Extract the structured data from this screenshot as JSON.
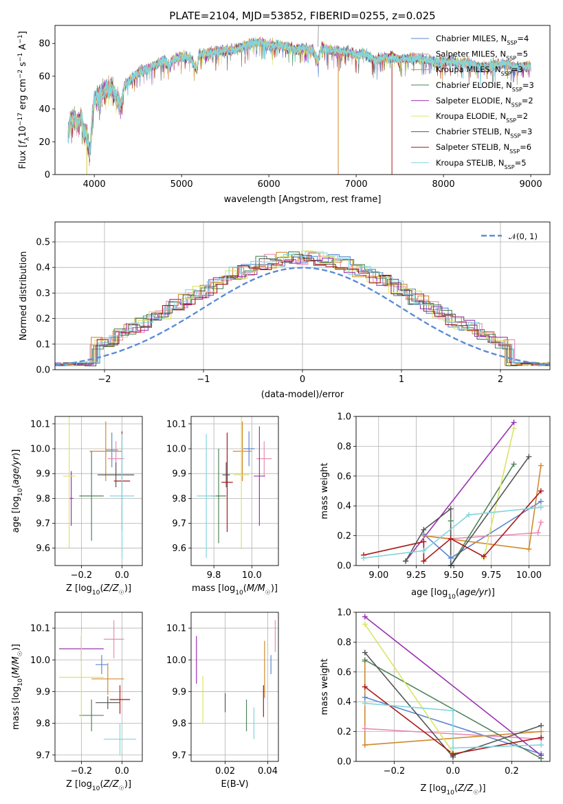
{
  "colors": {
    "grid": "#b0b0b0",
    "normal_curve": "#5b8bd6"
  },
  "series": [
    {
      "color": "#5b86cf",
      "name_base": "Chabrier MILES",
      "nssp": "4"
    },
    {
      "color": "#e88bb4",
      "name_base": "Salpeter MILES",
      "nssp": "5"
    },
    {
      "color": "#d2892c",
      "name_base": "Kroupa MILES",
      "nssp": "3"
    },
    {
      "color": "#4f845a",
      "name_base": "Chabrier ELODIE",
      "nssp": "3"
    },
    {
      "color": "#9a31b0",
      "name_base": "Salpeter ELODIE",
      "nssp": "2"
    },
    {
      "color": "#dbe364",
      "name_base": "Kroupa ELODIE",
      "nssp": "2"
    },
    {
      "color": "#555555",
      "name_base": "Chabrier STELIB",
      "nssp": "3"
    },
    {
      "color": "#a81818",
      "name_base": "Salpeter STELIB",
      "nssp": "6"
    },
    {
      "color": "#7fd6dc",
      "name_base": "Kroupa STELIB",
      "nssp": "5"
    }
  ],
  "chart_data": [
    {
      "id": "spectrum",
      "type": "line",
      "title": "PLATE=2104, MJD=53852, FIBERID=0255, z=0.025",
      "xlabel": "wavelength [Angstrom, rest frame]",
      "ylabel": "Flux [f_λ10^-17 erg cm^-2 s^-1 A^-1]",
      "xlim": [
        3550,
        9220
      ],
      "ylim": [
        0,
        91
      ],
      "xticks": [
        4000,
        5000,
        6000,
        7000,
        8000,
        9000
      ],
      "yticks": [
        0,
        20,
        40,
        60,
        80
      ],
      "grid": false,
      "legend": "upper right",
      "envelope": {
        "x": [
          3700,
          3720,
          3780,
          3820,
          3850,
          3880,
          3900,
          3920,
          3950,
          3980,
          4000,
          4050,
          4100,
          4150,
          4200,
          4250,
          4300,
          4350,
          4400,
          4500,
          4600,
          4700,
          4800,
          4860,
          4900,
          5000,
          5100,
          5175,
          5200,
          5300,
          5400,
          5500,
          5600,
          5700,
          5800,
          5900,
          6000,
          6100,
          6200,
          6300,
          6400,
          6500,
          6563,
          6600,
          6700,
          6800,
          6900,
          7000,
          7100,
          7200,
          7300,
          7400,
          7500,
          7600,
          7700,
          7800,
          7900,
          8000,
          8100,
          8200,
          8300,
          8400,
          8500,
          8600,
          8700,
          8800,
          8900,
          9000
        ],
        "y": [
          24,
          32,
          35,
          30,
          36,
          24,
          28,
          20,
          14,
          38,
          46,
          48,
          50,
          52,
          53,
          47,
          42,
          55,
          57,
          62,
          64,
          67,
          70,
          66,
          70,
          72,
          71,
          64,
          73,
          74,
          75,
          76,
          76,
          78,
          80,
          81,
          79,
          79,
          78,
          76,
          77,
          76,
          69,
          78,
          76,
          75,
          75,
          73,
          74,
          70,
          71,
          72,
          70,
          71,
          71,
          70,
          69,
          69,
          69,
          68,
          68,
          66,
          66,
          67,
          68,
          66,
          66,
          66
        ]
      }
    },
    {
      "id": "residuals",
      "type": "histogram",
      "xlabel": "(data-model)/error",
      "ylabel": "Normed distribution",
      "xlim": [
        -2.5,
        2.5
      ],
      "ylim": [
        0,
        0.578
      ],
      "xticks": [
        -2,
        -1,
        0,
        1,
        2
      ],
      "yticks": [
        0.0,
        0.1,
        0.2,
        0.3,
        0.4,
        0.5
      ],
      "grid": true,
      "legend": "upper right",
      "legend_label": "𝒩(0, 1)",
      "bin_width": 0.11
    },
    {
      "id": "age-vs-Z",
      "type": "errorbar",
      "xlabel": "Z [log10(Z/Z☉)]",
      "ylabel": "age  [log10(age/yr)]",
      "xlim": [
        -0.33,
        0.1
      ],
      "ylim": [
        9.53,
        10.13
      ],
      "xticks": [
        -0.2,
        0.0
      ],
      "yticks": [
        9.6,
        9.7,
        9.8,
        9.9,
        10.0,
        10.1
      ],
      "grid": true,
      "points": [
        {
          "series": 0,
          "x": -0.05,
          "y": 9.995,
          "xerr": 0.03,
          "yerr": 0.07
        },
        {
          "series": 1,
          "x": -0.03,
          "y": 9.96,
          "xerr": 0.04,
          "yerr": 0.07
        },
        {
          "series": 2,
          "x": -0.08,
          "y": 9.99,
          "xerr": 0.08,
          "yerr": 0.12
        },
        {
          "series": 3,
          "x": -0.15,
          "y": 9.81,
          "xerr": 0.06,
          "yerr": 0.18
        },
        {
          "series": 4,
          "x": -0.25,
          "y": 9.8,
          "xerr": 0.01,
          "yerr": 0.11
        },
        {
          "series": 5,
          "x": -0.26,
          "y": 9.89,
          "xerr": 0.03,
          "yerr": 0.29
        },
        {
          "series": 6,
          "x": -0.03,
          "y": 9.895,
          "xerr": 0.09,
          "yerr": 0.05
        },
        {
          "series": 7,
          "x": 0.0,
          "y": 9.87,
          "xerr": 0.04,
          "yerr": 0.2
        },
        {
          "series": 8,
          "x": 0.0,
          "y": 9.81,
          "xerr": 0.06,
          "yerr": 0.25
        }
      ]
    },
    {
      "id": "age-vs-mass",
      "type": "errorbar",
      "xlabel": "mass [log10(M/M☉)]",
      "xlim": [
        9.68,
        10.14
      ],
      "ylim": [
        9.53,
        10.13
      ],
      "xticks": [
        9.8,
        10.0
      ],
      "yticks": [
        9.6,
        9.7,
        9.8,
        9.9,
        10.0,
        10.1
      ],
      "grid": true,
      "points": [
        {
          "series": 0,
          "x": 9.985,
          "y": 10.0,
          "xerr": 0.03,
          "yerr": 0.07
        },
        {
          "series": 1,
          "x": 10.065,
          "y": 9.96,
          "xerr": 0.04,
          "yerr": 0.07
        },
        {
          "series": 2,
          "x": 9.95,
          "y": 9.99,
          "xerr": 0.05,
          "yerr": 0.12
        },
        {
          "series": 3,
          "x": 9.825,
          "y": 9.81,
          "xerr": 0.04,
          "yerr": 0.19
        },
        {
          "series": 4,
          "x": 10.04,
          "y": 9.89,
          "xerr": 0.03,
          "yerr": 0.2
        },
        {
          "series": 5,
          "x": 9.945,
          "y": 9.895,
          "xerr": 0.04,
          "yerr": 0.3
        },
        {
          "series": 6,
          "x": 9.865,
          "y": 9.895,
          "xerr": 0.02,
          "yerr": 0.05
        },
        {
          "series": 7,
          "x": 9.87,
          "y": 9.865,
          "xerr": 0.03,
          "yerr": 0.2
        },
        {
          "series": 8,
          "x": 9.76,
          "y": 9.81,
          "xerr": 0.05,
          "yerr": 0.25
        }
      ]
    },
    {
      "id": "weight-vs-age",
      "type": "line",
      "xlabel": "age  [log10(age/yr)]",
      "ylabel": "mass weight",
      "xlim": [
        8.85,
        10.14
      ],
      "ylim": [
        0,
        1
      ],
      "xticks": [
        9.0,
        9.25,
        9.5,
        9.75,
        10.0
      ],
      "xtick_labels": [
        "9.00",
        "9.25",
        "9.50",
        "9.75",
        "10.00"
      ],
      "yticks": [
        0.0,
        0.2,
        0.4,
        0.6,
        0.8,
        1.0
      ],
      "grid": true,
      "lines": [
        {
          "series": 0,
          "x": [
            9.3,
            9.48,
            10.08
          ],
          "y": [
            0.21,
            0.05,
            0.43
          ]
        },
        {
          "series": 1,
          "x": [
            9.3,
            9.48,
            10.06,
            10.08
          ],
          "y": [
            0.2,
            0.18,
            0.22,
            0.29
          ]
        },
        {
          "series": 2,
          "x": [
            9.3,
            10.0,
            10.08
          ],
          "y": [
            0.2,
            0.11,
            0.67
          ]
        },
        {
          "series": 3,
          "x": [
            9.48,
            9.48,
            9.9
          ],
          "y": [
            0.3,
            0.0,
            0.68
          ]
        },
        {
          "series": 4,
          "x": [
            9.18,
            9.9
          ],
          "y": [
            0.03,
            0.96
          ]
        },
        {
          "series": 5,
          "x": [
            9.7,
            9.9
          ],
          "y": [
            0.05,
            0.92
          ]
        },
        {
          "series": 6,
          "x": [
            9.18,
            9.3,
            9.48,
            9.48,
            10.0
          ],
          "y": [
            0.03,
            0.24,
            0.38,
            0.0,
            0.73
          ]
        },
        {
          "series": 7,
          "x": [
            8.9,
            9.3,
            9.3,
            9.48,
            9.7,
            10.08
          ],
          "y": [
            0.07,
            0.16,
            0.03,
            0.18,
            0.06,
            0.5
          ]
        },
        {
          "series": 8,
          "x": [
            8.9,
            9.3,
            9.6,
            10.08
          ],
          "y": [
            0.05,
            0.1,
            0.34,
            0.39
          ]
        }
      ]
    },
    {
      "id": "mass-vs-Z",
      "type": "errorbar",
      "xlabel": "Z [log10(Z/Z☉)]",
      "ylabel": "mass [log10(M/M☉)]",
      "xlim": [
        -0.33,
        0.1
      ],
      "ylim": [
        9.68,
        10.15
      ],
      "xticks": [
        -0.2,
        0.0
      ],
      "yticks": [
        9.7,
        9.8,
        9.9,
        10.0,
        10.1
      ],
      "grid": true,
      "points": [
        {
          "series": 0,
          "x": -0.1,
          "y": 9.985,
          "xerr": 0.03,
          "yerr": 0.03
        },
        {
          "series": 1,
          "x": -0.04,
          "y": 10.065,
          "xerr": 0.05,
          "yerr": 0.06
        },
        {
          "series": 2,
          "x": -0.07,
          "y": 9.94,
          "xerr": 0.08,
          "yerr": 0.05
        },
        {
          "series": 3,
          "x": -0.15,
          "y": 9.825,
          "xerr": 0.06,
          "yerr": 0.05
        },
        {
          "series": 4,
          "x": -0.2,
          "y": 10.035,
          "xerr": 0.11,
          "yerr": 0.04
        },
        {
          "series": 5,
          "x": -0.2,
          "y": 9.945,
          "xerr": 0.11,
          "yerr": 0.14
        },
        {
          "series": 6,
          "x": -0.07,
          "y": 9.865,
          "xerr": 0.06,
          "yerr": 0.02
        },
        {
          "series": 7,
          "x": -0.01,
          "y": 9.875,
          "xerr": 0.05,
          "yerr": 0.045
        },
        {
          "series": 8,
          "x": -0.01,
          "y": 9.75,
          "xerr": 0.08,
          "yerr": 0.05
        }
      ]
    },
    {
      "id": "mass-vs-ebv",
      "type": "errorbar",
      "xlabel": "E(B-V)",
      "xlim": [
        0.004,
        0.045
      ],
      "ylim": [
        9.68,
        10.15
      ],
      "xticks": [
        0.02,
        0.04
      ],
      "yticks": [
        9.7,
        9.8,
        9.9,
        10.0,
        10.1
      ],
      "grid": true,
      "points": [
        {
          "series": 0,
          "x": 0.0415,
          "y": 9.985,
          "xerr": 0,
          "yerr": 0.03
        },
        {
          "series": 1,
          "x": 0.0435,
          "y": 10.075,
          "xerr": 0,
          "yerr": 0.05
        },
        {
          "series": 2,
          "x": 0.0385,
          "y": 9.97,
          "xerr": 0,
          "yerr": 0.09
        },
        {
          "series": 3,
          "x": 0.03,
          "y": 9.825,
          "xerr": 0,
          "yerr": 0.05
        },
        {
          "series": 4,
          "x": 0.0065,
          "y": 10.0,
          "xerr": 0,
          "yerr": 0.075
        },
        {
          "series": 5,
          "x": 0.0095,
          "y": 9.875,
          "xerr": 0,
          "yerr": 0.075
        },
        {
          "series": 6,
          "x": 0.02,
          "y": 9.865,
          "xerr": 0,
          "yerr": 0.03
        },
        {
          "series": 7,
          "x": 0.038,
          "y": 9.87,
          "xerr": 0,
          "yerr": 0.05
        },
        {
          "series": 8,
          "x": 0.0335,
          "y": 9.8,
          "xerr": 0,
          "yerr": 0.05
        }
      ]
    },
    {
      "id": "weight-vs-Z",
      "type": "line",
      "xlabel": "Z [log10(Z/Z☉)]",
      "ylabel": "mass weight",
      "xlim": [
        -0.33,
        0.33
      ],
      "ylim": [
        0,
        1
      ],
      "xticks": [
        -0.2,
        0.0,
        0.2
      ],
      "yticks": [
        0.0,
        0.2,
        0.4,
        0.6,
        0.8,
        1.0
      ],
      "grid": true,
      "lines": [
        {
          "series": 0,
          "x": [
            -0.3,
            0.3
          ],
          "y": [
            0.43,
            0.05
          ]
        },
        {
          "series": 1,
          "x": [
            -0.3,
            0.3
          ],
          "y": [
            0.22,
            0.15
          ]
        },
        {
          "series": 2,
          "x": [
            -0.3,
            -0.3,
            0.3
          ],
          "y": [
            0.67,
            0.11,
            0.2
          ]
        },
        {
          "series": 3,
          "x": [
            -0.3,
            0.3
          ],
          "y": [
            0.68,
            0.02
          ]
        },
        {
          "series": 4,
          "x": [
            -0.3,
            0.3
          ],
          "y": [
            0.97,
            0.04
          ]
        },
        {
          "series": 5,
          "x": [
            -0.3,
            0.0
          ],
          "y": [
            0.92,
            0.06
          ]
        },
        {
          "series": 6,
          "x": [
            -0.3,
            0.0,
            0.0,
            0.3
          ],
          "y": [
            0.73,
            0.03,
            0.04,
            0.24
          ]
        },
        {
          "series": 7,
          "x": [
            -0.3,
            0.0,
            0.3
          ],
          "y": [
            0.5,
            0.05,
            0.16
          ]
        },
        {
          "series": 8,
          "x": [
            -0.3,
            0.0,
            0.0,
            0.3
          ],
          "y": [
            0.39,
            0.34,
            0.09,
            0.11
          ]
        }
      ]
    }
  ]
}
